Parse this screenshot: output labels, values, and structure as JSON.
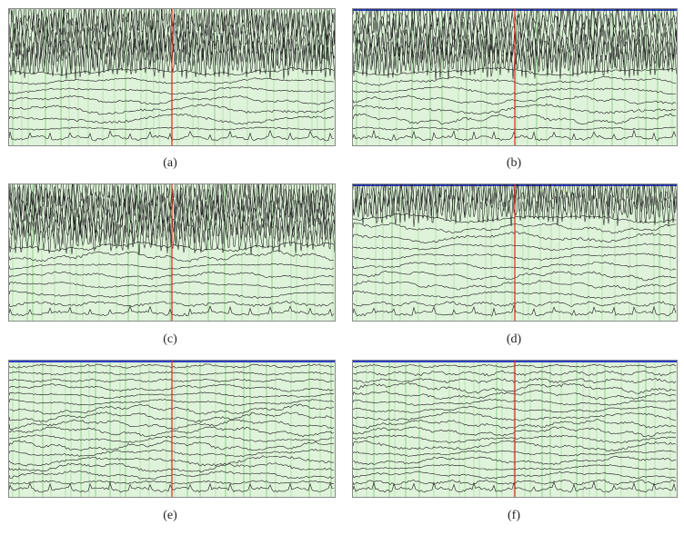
{
  "figure": {
    "panels": [
      {
        "id": "a",
        "caption": "(a)",
        "channels": 14,
        "dense_rows": 6,
        "blue_top": false,
        "marker": true,
        "seed": 11
      },
      {
        "id": "b",
        "caption": "(b)",
        "channels": 14,
        "dense_rows": 6,
        "blue_top": true,
        "marker": true,
        "seed": 23
      },
      {
        "id": "c",
        "caption": "(c)",
        "channels": 14,
        "dense_rows": 6,
        "blue_top": false,
        "marker": true,
        "seed": 37
      },
      {
        "id": "d",
        "caption": "(d)",
        "channels": 14,
        "dense_rows": 3,
        "blue_top": true,
        "marker": true,
        "seed": 41
      },
      {
        "id": "e",
        "caption": "(e)",
        "channels": 18,
        "dense_rows": 0,
        "blue_top": true,
        "marker": true,
        "seed": 53
      },
      {
        "id": "f",
        "caption": "(f)",
        "channels": 18,
        "dense_rows": 0,
        "blue_top": true,
        "marker": true,
        "seed": 67
      }
    ],
    "colors": {
      "background": "#dff3da",
      "grid": "#9fd89a",
      "trace": "#1a1a1a",
      "marker": "#e0281e",
      "top_bar": "#2b3fc4"
    }
  }
}
